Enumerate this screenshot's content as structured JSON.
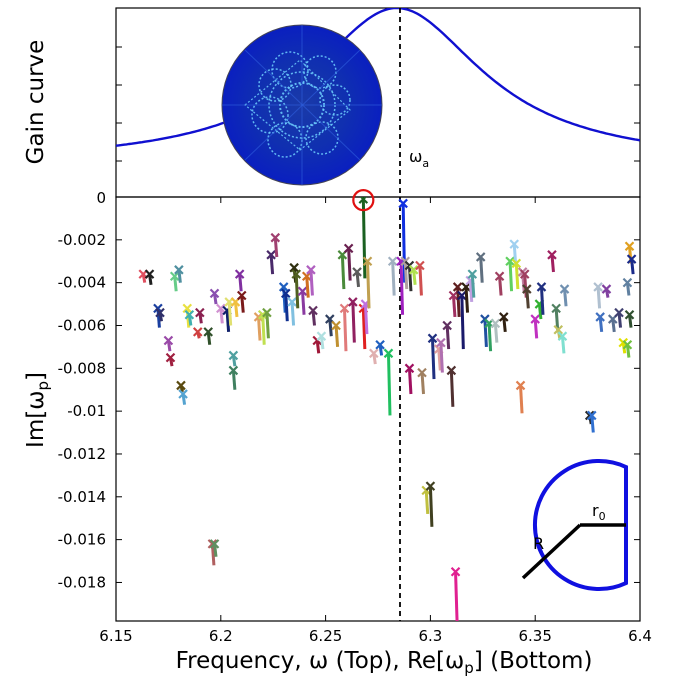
{
  "top_panel": {
    "ylabel": "Gain curve",
    "zero_label": "0",
    "omega_a_label": "ω",
    "omega_a_sub": "a"
  },
  "xlabel": "Frequency, ω (Top), Re[ω",
  "xlabel_sub": "p",
  "xlabel_end": "] (Bottom)",
  "ylabel_bottom": "Im[ω",
  "ylabel_bottom_sub": "p",
  "ylabel_bottom_end": "]",
  "inset_labels": {
    "R": "R",
    "r0": "r",
    "r0_sub": "0"
  },
  "chart_data": {
    "type": "scatter",
    "xlim": [
      6.15,
      6.4
    ],
    "ylim": [
      -0.0198,
      0
    ],
    "x_ticks": [
      "6.15",
      "6.2",
      "6.25",
      "6.3",
      "6.35",
      "6.4"
    ],
    "x_tick_values": [
      6.15,
      6.2,
      6.25,
      6.3,
      6.35,
      6.4
    ],
    "y_ticks": [
      "-0.002",
      "-0.004",
      "-0.006",
      "-0.008",
      "-0.01",
      "-0.012",
      "-0.014",
      "-0.016",
      "-0.018"
    ],
    "y_tick_values": [
      -0.002,
      -0.004,
      -0.006,
      -0.008,
      -0.01,
      -0.012,
      -0.014,
      -0.016,
      -0.018
    ],
    "omega_a": 6.284,
    "gain_curve": {
      "center": 6.284,
      "half_width": 0.05,
      "baseline_y_fraction": 0.2,
      "peak_y_fraction": 1.0
    },
    "highlighted_mode": {
      "x": 6.268,
      "y": -0.0001
    },
    "modes": [
      {
        "x": 6.163,
        "y": -0.0036,
        "tail": -0.004,
        "color": "#e05060"
      },
      {
        "x": 6.166,
        "y": -0.0036,
        "tail": -0.0041,
        "color": "#202020"
      },
      {
        "x": 6.17,
        "y": -0.0052,
        "tail": -0.0061,
        "color": "#1a3fa0"
      },
      {
        "x": 6.171,
        "y": -0.0054,
        "tail": -0.0058,
        "color": "#30306a"
      },
      {
        "x": 6.175,
        "y": -0.0067,
        "tail": -0.0072,
        "color": "#9a4aa8"
      },
      {
        "x": 6.176,
        "y": -0.0075,
        "tail": -0.0079,
        "color": "#a02040"
      },
      {
        "x": 6.178,
        "y": -0.0037,
        "tail": -0.0044,
        "color": "#66cc88"
      },
      {
        "x": 6.18,
        "y": -0.0034,
        "tail": -0.004,
        "color": "#5090a0"
      },
      {
        "x": 6.181,
        "y": -0.0088,
        "tail": -0.0091,
        "color": "#5a4a10"
      },
      {
        "x": 6.182,
        "y": -0.0092,
        "tail": -0.0097,
        "color": "#55a3d0"
      },
      {
        "x": 6.184,
        "y": -0.0052,
        "tail": -0.0061,
        "color": "#e8e040"
      },
      {
        "x": 6.185,
        "y": -0.0055,
        "tail": -0.006,
        "color": "#40b0b0"
      },
      {
        "x": 6.189,
        "y": -0.0063,
        "tail": -0.0066,
        "color": "#d04040"
      },
      {
        "x": 6.19,
        "y": -0.0054,
        "tail": -0.0059,
        "color": "#8a2050"
      },
      {
        "x": 6.194,
        "y": -0.0063,
        "tail": -0.0069,
        "color": "#30502a"
      },
      {
        "x": 6.196,
        "y": -0.0162,
        "tail": -0.0172,
        "color": "#b06060"
      },
      {
        "x": 6.197,
        "y": -0.0162,
        "tail": -0.0168,
        "color": "#609060"
      },
      {
        "x": 6.197,
        "y": -0.0045,
        "tail": -0.005,
        "color": "#8a50b0"
      },
      {
        "x": 6.2,
        "y": -0.0052,
        "tail": -0.0059,
        "color": "#d090d0"
      },
      {
        "x": 6.203,
        "y": -0.0053,
        "tail": -0.0063,
        "color": "#10206a"
      },
      {
        "x": 6.204,
        "y": -0.0049,
        "tail": -0.006,
        "color": "#e0e070"
      },
      {
        "x": 6.206,
        "y": -0.0081,
        "tail": -0.009,
        "color": "#408060"
      },
      {
        "x": 6.206,
        "y": -0.0074,
        "tail": -0.0079,
        "color": "#50a0a0"
      },
      {
        "x": 6.207,
        "y": -0.0049,
        "tail": -0.0056,
        "color": "#f0c040"
      },
      {
        "x": 6.209,
        "y": -0.0036,
        "tail": -0.0044,
        "color": "#8030a0"
      },
      {
        "x": 6.21,
        "y": -0.0046,
        "tail": -0.0054,
        "color": "#7a1a1a"
      },
      {
        "x": 6.218,
        "y": -0.0056,
        "tail": -0.0067,
        "color": "#e0a060"
      },
      {
        "x": 6.22,
        "y": -0.0055,
        "tail": -0.0069,
        "color": "#c0e050"
      },
      {
        "x": 6.222,
        "y": -0.0054,
        "tail": -0.0066,
        "color": "#70a040"
      },
      {
        "x": 6.224,
        "y": -0.0027,
        "tail": -0.0036,
        "color": "#4a2a6a"
      },
      {
        "x": 6.226,
        "y": -0.0019,
        "tail": -0.0028,
        "color": "#a04070"
      },
      {
        "x": 6.23,
        "y": -0.0042,
        "tail": -0.0054,
        "color": "#2060c0"
      },
      {
        "x": 6.231,
        "y": -0.0045,
        "tail": -0.0058,
        "color": "#103090"
      },
      {
        "x": 6.234,
        "y": -0.0049,
        "tail": -0.006,
        "color": "#80c0e0"
      },
      {
        "x": 6.235,
        "y": -0.0033,
        "tail": -0.004,
        "color": "#303010"
      },
      {
        "x": 6.236,
        "y": -0.0036,
        "tail": -0.0052,
        "color": "#506020"
      },
      {
        "x": 6.239,
        "y": -0.0044,
        "tail": -0.0055,
        "color": "#8a3aa0"
      },
      {
        "x": 6.241,
        "y": -0.0037,
        "tail": -0.0047,
        "color": "#d07020"
      },
      {
        "x": 6.243,
        "y": -0.0034,
        "tail": -0.0046,
        "color": "#b060c0"
      },
      {
        "x": 6.244,
        "y": -0.0053,
        "tail": -0.006,
        "color": "#603060"
      },
      {
        "x": 6.246,
        "y": -0.0067,
        "tail": -0.0073,
        "color": "#a01838"
      },
      {
        "x": 6.248,
        "y": -0.0065,
        "tail": -0.0071,
        "color": "#b0e0e0"
      },
      {
        "x": 6.252,
        "y": -0.0057,
        "tail": -0.0065,
        "color": "#304060"
      },
      {
        "x": 6.255,
        "y": -0.006,
        "tail": -0.007,
        "color": "#c09030"
      },
      {
        "x": 6.258,
        "y": -0.0027,
        "tail": -0.0043,
        "color": "#4a8a3a"
      },
      {
        "x": 6.259,
        "y": -0.0052,
        "tail": -0.0072,
        "color": "#e07a7a"
      },
      {
        "x": 6.261,
        "y": -0.0024,
        "tail": -0.0039,
        "color": "#6a2050"
      },
      {
        "x": 6.263,
        "y": -0.0049,
        "tail": -0.0068,
        "color": "#902060"
      },
      {
        "x": 6.265,
        "y": -0.0035,
        "tail": -0.0042,
        "color": "#5a5a5a"
      },
      {
        "x": 6.268,
        "y": -0.0001,
        "tail": -0.0038,
        "color": "#1a6020"
      },
      {
        "x": 6.268,
        "y": -0.0052,
        "tail": -0.0071,
        "color": "#e02020"
      },
      {
        "x": 6.269,
        "y": -0.005,
        "tail": -0.0064,
        "color": "#c070e0"
      },
      {
        "x": 6.27,
        "y": -0.003,
        "tail": -0.0052,
        "color": "#c0a050"
      },
      {
        "x": 6.273,
        "y": -0.0073,
        "tail": -0.0078,
        "color": "#e0b0b0"
      },
      {
        "x": 6.276,
        "y": -0.0069,
        "tail": -0.0074,
        "color": "#2060c0"
      },
      {
        "x": 6.28,
        "y": -0.0073,
        "tail": -0.0102,
        "color": "#20c060"
      },
      {
        "x": 6.282,
        "y": -0.003,
        "tail": -0.0046,
        "color": "#a0b0c0"
      },
      {
        "x": 6.286,
        "y": -0.003,
        "tail": -0.0055,
        "color": "#a020c0"
      },
      {
        "x": 6.287,
        "y": -0.0003,
        "tail": -0.004,
        "color": "#1030e0"
      },
      {
        "x": 6.288,
        "y": -0.003,
        "tail": -0.0043,
        "color": "#b0a0a0"
      },
      {
        "x": 6.29,
        "y": -0.0032,
        "tail": -0.0044,
        "color": "#303030"
      },
      {
        "x": 6.29,
        "y": -0.008,
        "tail": -0.0092,
        "color": "#a01060"
      },
      {
        "x": 6.292,
        "y": -0.0034,
        "tail": -0.0041,
        "color": "#b0e050"
      },
      {
        "x": 6.295,
        "y": -0.0032,
        "tail": -0.0046,
        "color": "#d05050"
      },
      {
        "x": 6.296,
        "y": -0.0082,
        "tail": -0.0092,
        "color": "#a08060"
      },
      {
        "x": 6.298,
        "y": -0.0137,
        "tail": -0.0148,
        "color": "#c0c040"
      },
      {
        "x": 6.3,
        "y": -0.0135,
        "tail": -0.0154,
        "color": "#404020"
      },
      {
        "x": 6.301,
        "y": -0.0066,
        "tail": -0.0085,
        "color": "#203080"
      },
      {
        "x": 6.304,
        "y": -0.0071,
        "tail": -0.0081,
        "color": "#e0a0a0"
      },
      {
        "x": 6.305,
        "y": -0.0068,
        "tail": -0.0082,
        "color": "#b070b0"
      },
      {
        "x": 6.308,
        "y": -0.006,
        "tail": -0.0071,
        "color": "#603060"
      },
      {
        "x": 6.31,
        "y": -0.0081,
        "tail": -0.0098,
        "color": "#503030"
      },
      {
        "x": 6.311,
        "y": -0.0046,
        "tail": -0.0056,
        "color": "#a03060"
      },
      {
        "x": 6.312,
        "y": -0.0175,
        "tail": -0.0198,
        "color": "#e02090"
      },
      {
        "x": 6.313,
        "y": -0.0042,
        "tail": -0.0056,
        "color": "#602020"
      },
      {
        "x": 6.315,
        "y": -0.0046,
        "tail": -0.0071,
        "color": "#1a1a6a"
      },
      {
        "x": 6.317,
        "y": -0.0042,
        "tail": -0.0054,
        "color": "#302010"
      },
      {
        "x": 6.319,
        "y": -0.0039,
        "tail": -0.0049,
        "color": "#c0a0e0"
      },
      {
        "x": 6.32,
        "y": -0.0036,
        "tail": -0.0047,
        "color": "#50a0a0"
      },
      {
        "x": 6.324,
        "y": -0.0028,
        "tail": -0.004,
        "color": "#607080"
      },
      {
        "x": 6.326,
        "y": -0.0057,
        "tail": -0.007,
        "color": "#2050a0"
      },
      {
        "x": 6.328,
        "y": -0.0059,
        "tail": -0.0072,
        "color": "#30a060"
      },
      {
        "x": 6.331,
        "y": -0.0059,
        "tail": -0.0068,
        "color": "#b0c0c0"
      },
      {
        "x": 6.333,
        "y": -0.0037,
        "tail": -0.0046,
        "color": "#a04060"
      },
      {
        "x": 6.335,
        "y": -0.0056,
        "tail": -0.0063,
        "color": "#302010"
      },
      {
        "x": 6.338,
        "y": -0.003,
        "tail": -0.0044,
        "color": "#60d060"
      },
      {
        "x": 6.34,
        "y": -0.0022,
        "tail": -0.0032,
        "color": "#a0d0f0"
      },
      {
        "x": 6.341,
        "y": -0.0031,
        "tail": -0.0043,
        "color": "#d0e030"
      },
      {
        "x": 6.343,
        "y": -0.0088,
        "tail": -0.0101,
        "color": "#e08050"
      },
      {
        "x": 6.344,
        "y": -0.0035,
        "tail": -0.0044,
        "color": "#c080a0"
      },
      {
        "x": 6.345,
        "y": -0.0036,
        "tail": -0.0047,
        "color": "#a04060"
      },
      {
        "x": 6.346,
        "y": -0.0043,
        "tail": -0.0052,
        "color": "#504030"
      },
      {
        "x": 6.35,
        "y": -0.0057,
        "tail": -0.0066,
        "color": "#c030c0"
      },
      {
        "x": 6.352,
        "y": -0.005,
        "tail": -0.0057,
        "color": "#30b030"
      },
      {
        "x": 6.353,
        "y": -0.0042,
        "tail": -0.0055,
        "color": "#203080"
      },
      {
        "x": 6.358,
        "y": -0.0027,
        "tail": -0.0035,
        "color": "#a02060"
      },
      {
        "x": 6.36,
        "y": -0.0052,
        "tail": -0.0062,
        "color": "#508060"
      },
      {
        "x": 6.361,
        "y": -0.0062,
        "tail": -0.0066,
        "color": "#c0c060"
      },
      {
        "x": 6.363,
        "y": -0.0065,
        "tail": -0.0073,
        "color": "#80e0d0"
      },
      {
        "x": 6.364,
        "y": -0.0043,
        "tail": -0.0051,
        "color": "#7090b0"
      },
      {
        "x": 6.376,
        "y": -0.0102,
        "tail": -0.0106,
        "color": "#2a2a2a"
      },
      {
        "x": 6.377,
        "y": -0.0102,
        "tail": -0.011,
        "color": "#3070d0"
      },
      {
        "x": 6.38,
        "y": -0.0042,
        "tail": -0.0052,
        "color": "#b0c0d0"
      },
      {
        "x": 6.381,
        "y": -0.0056,
        "tail": -0.0063,
        "color": "#4070c0"
      },
      {
        "x": 6.384,
        "y": -0.0043,
        "tail": -0.0047,
        "color": "#8040a0"
      },
      {
        "x": 6.387,
        "y": -0.0057,
        "tail": -0.0063,
        "color": "#5a7090"
      },
      {
        "x": 6.39,
        "y": -0.0054,
        "tail": -0.0061,
        "color": "#404070"
      },
      {
        "x": 6.392,
        "y": -0.0068,
        "tail": -0.0073,
        "color": "#e0e000"
      },
      {
        "x": 6.394,
        "y": -0.004,
        "tail": -0.0046,
        "color": "#6080a0"
      },
      {
        "x": 6.394,
        "y": -0.0069,
        "tail": -0.0075,
        "color": "#70c040"
      },
      {
        "x": 6.395,
        "y": -0.0055,
        "tail": -0.0061,
        "color": "#305030"
      },
      {
        "x": 6.395,
        "y": -0.0023,
        "tail": -0.0031,
        "color": "#e0a020"
      },
      {
        "x": 6.396,
        "y": -0.0029,
        "tail": -0.0036,
        "color": "#1a2a8a"
      }
    ]
  }
}
